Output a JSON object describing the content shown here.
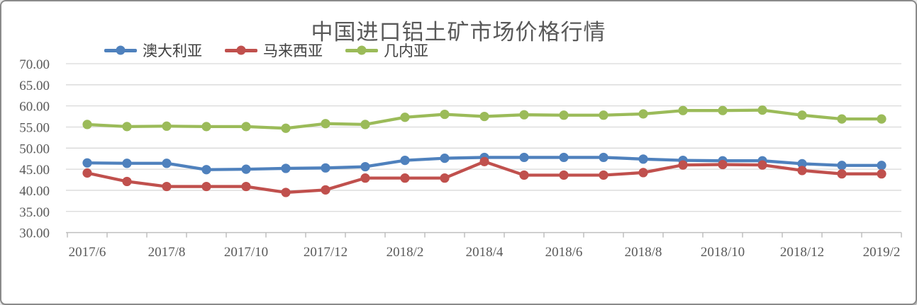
{
  "chart_data": {
    "type": "line",
    "title": "中国进口铝土矿市场价格行情",
    "legend_position": "top-left",
    "grid": "horizontal",
    "categories": [
      "2017/6",
      "2017/7",
      "2017/8",
      "2017/9",
      "2017/10",
      "2017/11",
      "2017/12",
      "2018/1",
      "2018/2",
      "2018/3",
      "2018/4",
      "2018/5",
      "2018/6",
      "2018/7",
      "2018/8",
      "2018/9",
      "2018/10",
      "2018/11",
      "2018/12",
      "2019/1",
      "2019/2"
    ],
    "x_tick_labels": [
      "2017/6",
      "2017/8",
      "2017/10",
      "2017/12",
      "2018/2",
      "2018/4",
      "2018/6",
      "2018/8",
      "2018/10",
      "2018/12",
      "2019/2"
    ],
    "x_label_interval": 2,
    "series": [
      {
        "name": "澳大利亚",
        "color": "#4F81BD",
        "values": [
          46.5,
          46.4,
          46.4,
          44.9,
          45.0,
          45.2,
          45.3,
          45.6,
          47.1,
          47.6,
          47.8,
          47.8,
          47.8,
          47.8,
          47.4,
          47.1,
          47.0,
          47.0,
          46.3,
          45.9,
          45.9
        ]
      },
      {
        "name": "马来西亚",
        "color": "#C0504D",
        "values": [
          44.1,
          42.1,
          40.9,
          40.9,
          40.9,
          39.5,
          40.1,
          42.9,
          42.9,
          42.9,
          46.8,
          43.6,
          43.6,
          43.6,
          44.2,
          46.0,
          46.1,
          46.0,
          44.7,
          43.9,
          43.9
        ]
      },
      {
        "name": "几内亚",
        "color": "#9BBB59",
        "values": [
          55.6,
          55.1,
          55.2,
          55.1,
          55.1,
          54.7,
          55.8,
          55.6,
          57.3,
          58.0,
          57.5,
          57.9,
          57.8,
          57.8,
          58.1,
          58.9,
          58.9,
          59.0,
          57.8,
          56.9,
          56.9
        ]
      }
    ],
    "y_axis": {
      "min": 30,
      "max": 70,
      "step": 5,
      "tick_labels": [
        "70.00",
        "65.00",
        "60.00",
        "55.00",
        "50.00",
        "45.00",
        "40.00",
        "35.00",
        "30.00"
      ]
    },
    "colors": {
      "gridline": "#D9D9D9",
      "axis_line": "#BFBFBF",
      "tick_text": "#595959",
      "title_text": "#595959"
    }
  }
}
